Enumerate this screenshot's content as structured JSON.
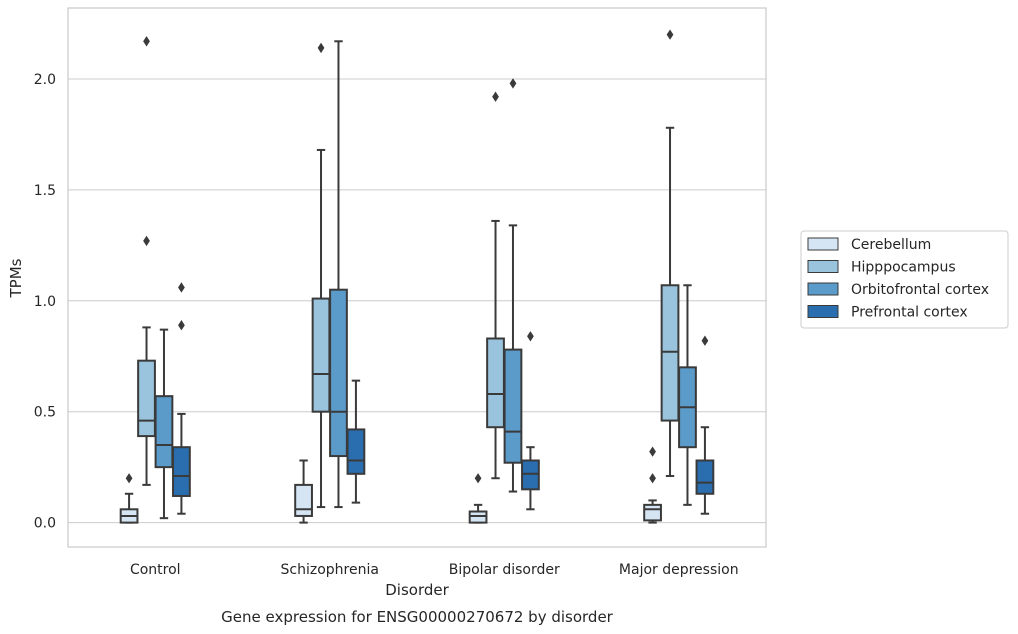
{
  "chart_data": {
    "type": "box",
    "caption": "Gene expression for ENSG00000270672 by disorder",
    "xlabel": "Disorder",
    "ylabel": "TPMs",
    "ylim": [
      -0.11,
      2.32
    ],
    "yticks": [
      "0.0",
      "0.5",
      "1.0",
      "1.5",
      "2.0"
    ],
    "ytick_values": [
      0.0,
      0.5,
      1.0,
      1.5,
      2.0
    ],
    "grid": "horizontal",
    "legend_position": "right",
    "categories": [
      "Control",
      "Schizophrenia",
      "Bipolar disorder",
      "Major depression"
    ],
    "series": [
      {
        "name": "Cerebellum",
        "color": "#d6e5f4",
        "boxes": [
          {
            "whislo": 0.0,
            "q1": 0.0,
            "med": 0.03,
            "q3": 0.06,
            "whishi": 0.13,
            "fliers": [
              0.2
            ]
          },
          {
            "whislo": 0.0,
            "q1": 0.03,
            "med": 0.06,
            "q3": 0.17,
            "whishi": 0.28,
            "fliers": []
          },
          {
            "whislo": 0.0,
            "q1": 0.0,
            "med": 0.03,
            "q3": 0.05,
            "whishi": 0.08,
            "fliers": [
              0.2
            ]
          },
          {
            "whislo": 0.0,
            "q1": 0.01,
            "med": 0.06,
            "q3": 0.08,
            "whishi": 0.1,
            "fliers": [
              0.2,
              0.32
            ]
          }
        ]
      },
      {
        "name": "Hipppocampus",
        "color": "#9ac4de",
        "boxes": [
          {
            "whislo": 0.17,
            "q1": 0.39,
            "med": 0.46,
            "q3": 0.73,
            "whishi": 0.88,
            "fliers": [
              1.27,
              2.17
            ]
          },
          {
            "whislo": 0.07,
            "q1": 0.5,
            "med": 0.67,
            "q3": 1.01,
            "whishi": 1.68,
            "fliers": [
              2.14
            ]
          },
          {
            "whislo": 0.2,
            "q1": 0.43,
            "med": 0.58,
            "q3": 0.83,
            "whishi": 1.36,
            "fliers": [
              1.92
            ]
          },
          {
            "whislo": 0.21,
            "q1": 0.46,
            "med": 0.77,
            "q3": 1.07,
            "whishi": 1.78,
            "fliers": [
              2.2
            ]
          }
        ]
      },
      {
        "name": "Orbitofrontal cortex",
        "color": "#5b9bc9",
        "boxes": [
          {
            "whislo": 0.02,
            "q1": 0.25,
            "med": 0.35,
            "q3": 0.57,
            "whishi": 0.87,
            "fliers": []
          },
          {
            "whislo": 0.07,
            "q1": 0.3,
            "med": 0.5,
            "q3": 1.05,
            "whishi": 2.17,
            "fliers": []
          },
          {
            "whislo": 0.14,
            "q1": 0.27,
            "med": 0.41,
            "q3": 0.78,
            "whishi": 1.34,
            "fliers": [
              1.98
            ]
          },
          {
            "whislo": 0.08,
            "q1": 0.34,
            "med": 0.52,
            "q3": 0.7,
            "whishi": 1.07,
            "fliers": []
          }
        ]
      },
      {
        "name": "Prefrontal cortex",
        "color": "#2a6eb0",
        "boxes": [
          {
            "whislo": 0.04,
            "q1": 0.12,
            "med": 0.21,
            "q3": 0.34,
            "whishi": 0.49,
            "fliers": [
              0.89,
              1.06
            ]
          },
          {
            "whislo": 0.09,
            "q1": 0.22,
            "med": 0.28,
            "q3": 0.42,
            "whishi": 0.64,
            "fliers": []
          },
          {
            "whislo": 0.06,
            "q1": 0.15,
            "med": 0.22,
            "q3": 0.28,
            "whishi": 0.34,
            "fliers": [
              0.84
            ]
          },
          {
            "whislo": 0.04,
            "q1": 0.13,
            "med": 0.18,
            "q3": 0.28,
            "whishi": 0.43,
            "fliers": [
              0.82
            ]
          }
        ]
      }
    ]
  }
}
